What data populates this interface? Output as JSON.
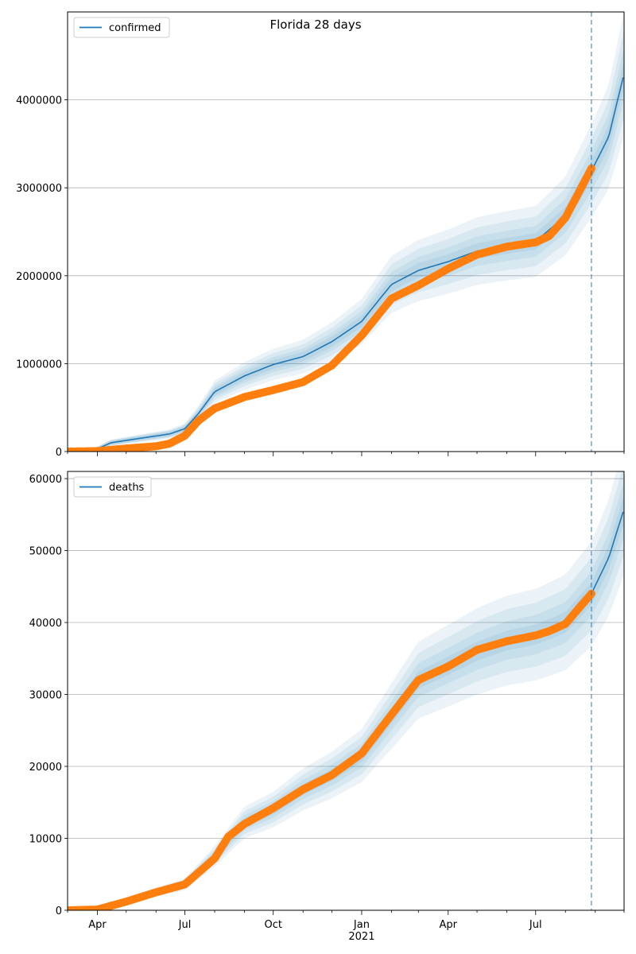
{
  "figure": {
    "title": "Florida 28 days"
  },
  "chart_data": [
    {
      "type": "line",
      "title": "",
      "xlabel": "",
      "ylabel": "",
      "ylim": [
        0,
        5000000
      ],
      "yticks": [
        0,
        1000000,
        2000000,
        3000000,
        4000000
      ],
      "grid": "y-major",
      "legend": "top-left",
      "forecast_start": "2021-08-28",
      "series": [
        {
          "name": "confirmed",
          "kind": "model",
          "color": "#1f77b4",
          "points": [
            [
              "2020-03-01",
              0
            ],
            [
              "2020-04-01",
              30000
            ],
            [
              "2020-04-15",
              100000
            ],
            [
              "2020-05-15",
              150000
            ],
            [
              "2020-06-15",
              200000
            ],
            [
              "2020-07-01",
              260000
            ],
            [
              "2020-07-15",
              430000
            ],
            [
              "2020-08-01",
              680000
            ],
            [
              "2020-09-01",
              860000
            ],
            [
              "2020-10-01",
              990000
            ],
            [
              "2020-11-01",
              1080000
            ],
            [
              "2020-12-01",
              1250000
            ],
            [
              "2021-01-01",
              1480000
            ],
            [
              "2021-02-01",
              1900000
            ],
            [
              "2021-03-01",
              2060000
            ],
            [
              "2021-04-01",
              2160000
            ],
            [
              "2021-05-01",
              2280000
            ],
            [
              "2021-06-01",
              2340000
            ],
            [
              "2021-07-01",
              2390000
            ],
            [
              "2021-08-01",
              2680000
            ],
            [
              "2021-08-28",
              3190000
            ],
            [
              "2021-09-15",
              3580000
            ],
            [
              "2021-10-01",
              4300000
            ]
          ]
        },
        {
          "name": "",
          "kind": "observed",
          "color": "#ff7f0e",
          "points": [
            [
              "2020-03-01",
              0
            ],
            [
              "2020-04-01",
              5000
            ],
            [
              "2020-05-01",
              35000
            ],
            [
              "2020-06-01",
              60000
            ],
            [
              "2020-06-15",
              90000
            ],
            [
              "2020-07-01",
              180000
            ],
            [
              "2020-07-15",
              350000
            ],
            [
              "2020-08-01",
              490000
            ],
            [
              "2020-09-01",
              620000
            ],
            [
              "2020-10-01",
              700000
            ],
            [
              "2020-11-01",
              790000
            ],
            [
              "2020-12-01",
              980000
            ],
            [
              "2021-01-01",
              1320000
            ],
            [
              "2021-02-01",
              1740000
            ],
            [
              "2021-03-01",
              1890000
            ],
            [
              "2021-04-01",
              2080000
            ],
            [
              "2021-05-01",
              2240000
            ],
            [
              "2021-06-01",
              2330000
            ],
            [
              "2021-07-01",
              2380000
            ],
            [
              "2021-07-15",
              2450000
            ],
            [
              "2021-08-01",
              2660000
            ],
            [
              "2021-08-15",
              2950000
            ],
            [
              "2021-08-28",
              3220000
            ]
          ]
        }
      ]
    },
    {
      "type": "line",
      "title": "",
      "xlabel": "",
      "ylabel": "",
      "ylim": [
        0,
        61000
      ],
      "yticks": [
        0,
        10000,
        20000,
        30000,
        40000,
        50000,
        60000
      ],
      "grid": "y-major",
      "legend": "top-left",
      "forecast_start": "2021-08-28",
      "xtick_labels": [
        "Apr",
        "Jul",
        "Oct",
        "Jan",
        "Apr",
        "Jul"
      ],
      "xtick_year": "2021",
      "series": [
        {
          "name": "deaths",
          "kind": "model",
          "color": "#1f77b4",
          "points": [
            [
              "2020-03-01",
              0
            ],
            [
              "2020-04-01",
              100
            ],
            [
              "2020-05-01",
              1300
            ],
            [
              "2020-06-01",
              2500
            ],
            [
              "2020-07-01",
              3600
            ],
            [
              "2020-08-01",
              7500
            ],
            [
              "2020-09-01",
              12200
            ],
            [
              "2020-10-01",
              14000
            ],
            [
              "2020-11-01",
              16800
            ],
            [
              "2020-12-01",
              18800
            ],
            [
              "2021-01-01",
              21500
            ],
            [
              "2021-02-01",
              27000
            ],
            [
              "2021-03-01",
              32000
            ],
            [
              "2021-04-01",
              34000
            ],
            [
              "2021-05-01",
              36000
            ],
            [
              "2021-06-01",
              37500
            ],
            [
              "2021-07-01",
              38300
            ],
            [
              "2021-08-01",
              40000
            ],
            [
              "2021-08-28",
              44000
            ],
            [
              "2021-09-15",
              49000
            ],
            [
              "2021-10-01",
              55800
            ]
          ]
        },
        {
          "name": "",
          "kind": "observed",
          "color": "#ff7f0e",
          "points": [
            [
              "2020-03-01",
              0
            ],
            [
              "2020-04-01",
              100
            ],
            [
              "2020-05-01",
              1200
            ],
            [
              "2020-06-01",
              2500
            ],
            [
              "2020-07-01",
              3600
            ],
            [
              "2020-08-01",
              7200
            ],
            [
              "2020-08-15",
              10200
            ],
            [
              "2020-09-01",
              12000
            ],
            [
              "2020-10-01",
              14200
            ],
            [
              "2020-11-01",
              16800
            ],
            [
              "2020-12-01",
              18800
            ],
            [
              "2021-01-01",
              21800
            ],
            [
              "2021-02-01",
              27200
            ],
            [
              "2021-03-01",
              32000
            ],
            [
              "2021-04-01",
              33900
            ],
            [
              "2021-05-01",
              36200
            ],
            [
              "2021-06-01",
              37400
            ],
            [
              "2021-07-01",
              38200
            ],
            [
              "2021-07-15",
              38800
            ],
            [
              "2021-08-01",
              39800
            ],
            [
              "2021-08-15",
              42000
            ],
            [
              "2021-08-28",
              44000
            ]
          ]
        }
      ]
    }
  ]
}
